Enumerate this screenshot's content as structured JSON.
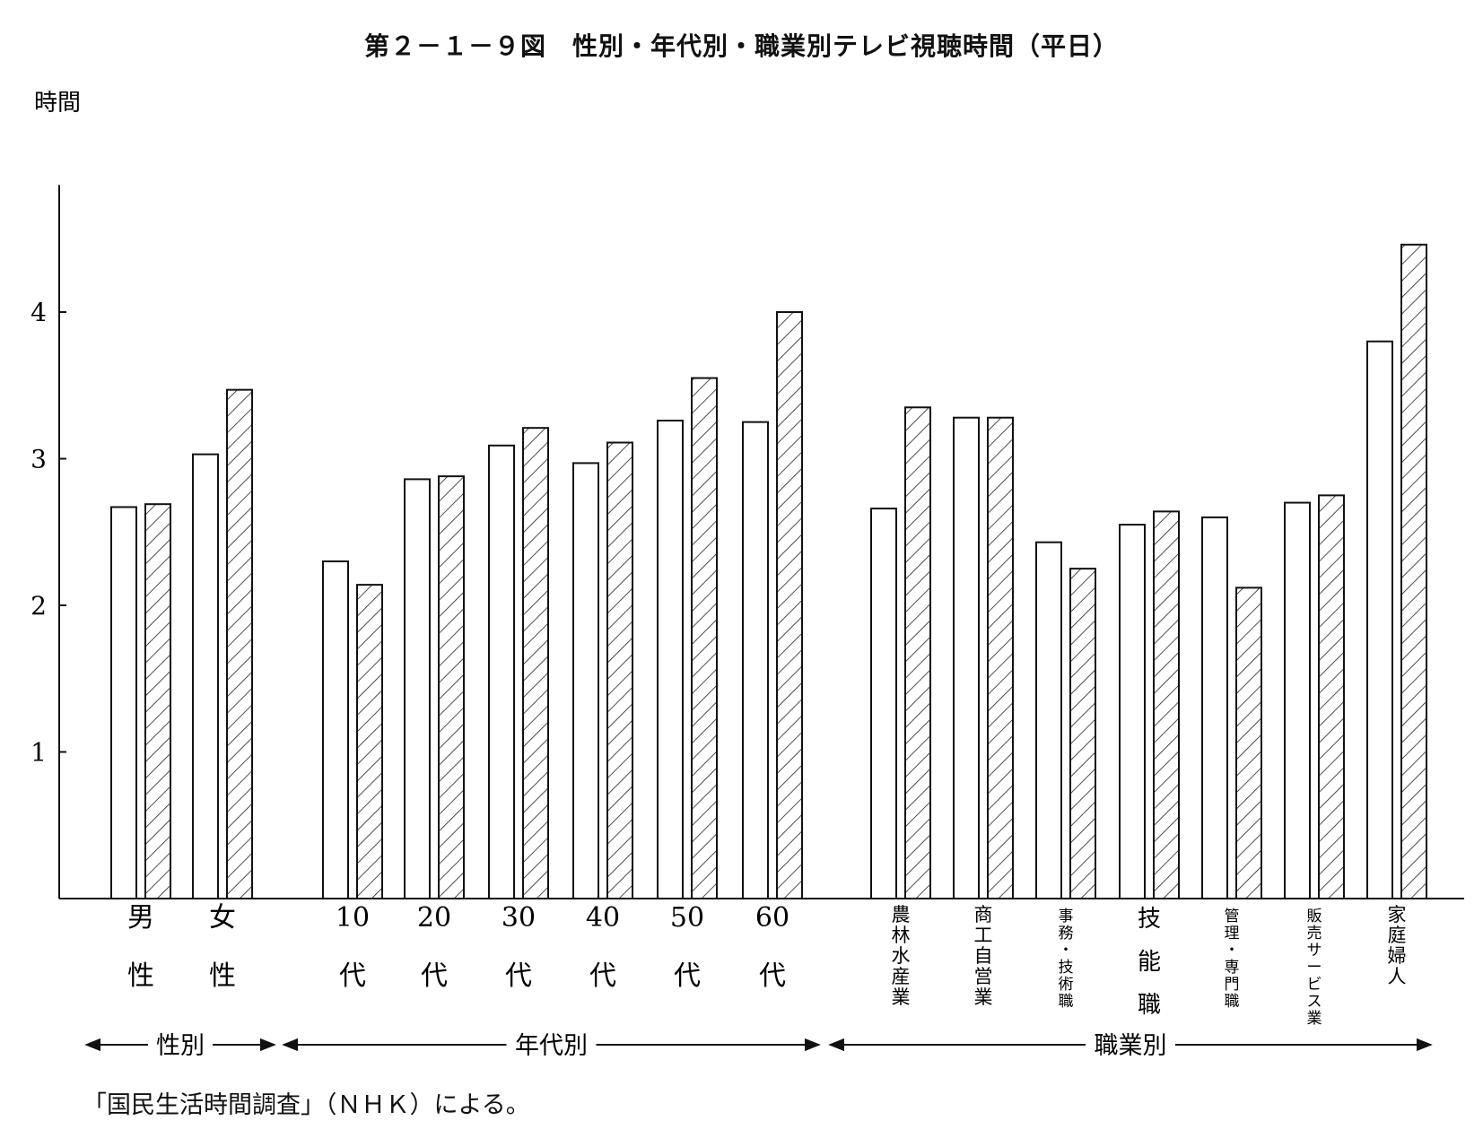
{
  "title": "第２－１－９図　性別・年代別・職業別テレビ視聴時間（平日）",
  "source_note": "「国民生活時間調査」（ＮＨＫ）による。",
  "colors": {
    "bar_plain": "#ffffff",
    "bar_hatched_line": "#222222",
    "axis": "#111111"
  },
  "chart_data": {
    "type": "bar",
    "ylabel": "時間",
    "ylim": [
      0,
      4.5
    ],
    "yticks": [
      "1",
      "2",
      "3",
      "4"
    ],
    "legend": null,
    "grid": false,
    "groups": [
      {
        "label": "性別",
        "categories": [
          {
            "label": [
              "男",
              "性"
            ],
            "values": [
              2.67,
              2.69
            ]
          },
          {
            "label": [
              "女",
              "性"
            ],
            "values": [
              3.03,
              3.47
            ]
          }
        ]
      },
      {
        "label": "年代別",
        "categories": [
          {
            "label": [
              "10",
              "代"
            ],
            "values": [
              2.3,
              2.14
            ]
          },
          {
            "label": [
              "20",
              "代"
            ],
            "values": [
              2.86,
              2.88
            ]
          },
          {
            "label": [
              "30",
              "代"
            ],
            "values": [
              3.09,
              3.21
            ]
          },
          {
            "label": [
              "40",
              "代"
            ],
            "values": [
              2.97,
              3.11
            ]
          },
          {
            "label": [
              "50",
              "代"
            ],
            "values": [
              3.26,
              3.55
            ]
          },
          {
            "label": [
              "60",
              "代"
            ],
            "values": [
              3.25,
              4.0
            ]
          }
        ]
      },
      {
        "label": "職業別",
        "categories": [
          {
            "label": [
              "農林水産業"
            ],
            "values": [
              2.66,
              3.35
            ]
          },
          {
            "label": [
              "商工自営業"
            ],
            "values": [
              3.28,
              3.28
            ]
          },
          {
            "label": [
              "事務・技術職"
            ],
            "values": [
              2.43,
              2.25
            ]
          },
          {
            "label": [
              "技",
              "能",
              "職"
            ],
            "values": [
              2.55,
              2.64
            ]
          },
          {
            "label": [
              "管理・専門職"
            ],
            "values": [
              2.6,
              2.12
            ]
          },
          {
            "label": [
              "販売サービス業"
            ],
            "values": [
              2.7,
              2.75
            ]
          },
          {
            "label": [
              "家庭婦人"
            ],
            "values": [
              3.8,
              4.46
            ]
          }
        ]
      }
    ]
  }
}
